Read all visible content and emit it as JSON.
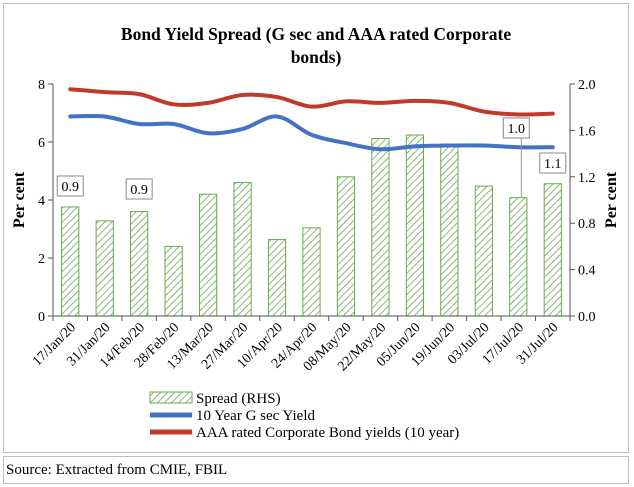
{
  "chart_data": {
    "type": "bar+line",
    "title_lines": [
      "Bond Yield Spread (G sec and  AAA rated Corporate",
      "bonds)"
    ],
    "ylabel_left": "Per cent",
    "ylabel_right": "Per cent",
    "ylim_left": [
      0,
      8
    ],
    "ylim_right": [
      0.0,
      2.0
    ],
    "yticks_left": [
      "0",
      "2",
      "4",
      "6",
      "8"
    ],
    "yticks_right": [
      "0.0",
      "0.4",
      "0.8",
      "1.2",
      "1.6",
      "2.0"
    ],
    "categories": [
      "17/Jan/20",
      "31/Jan/20",
      "14/Feb/20",
      "28/Feb/20",
      "13/Mar/20",
      "27/Mar/20",
      "10/Apr/20",
      "24/Apr/20",
      "08/May/20",
      "22/May/20",
      "05/Jun/20",
      "19/Jun/20",
      "03/Jul/20",
      "17/Jul/20",
      "31/Jul/20"
    ],
    "series": [
      {
        "name": "Spread (RHS)",
        "kind": "bar",
        "axis": "right",
        "color": "#6aa84f",
        "values": [
          0.94,
          0.82,
          0.9,
          0.6,
          1.05,
          1.15,
          0.66,
          0.76,
          1.2,
          1.53,
          1.56,
          1.48,
          1.12,
          1.02,
          1.14
        ]
      },
      {
        "name": "10 Year G sec Yield",
        "kind": "line",
        "axis": "left",
        "color": "#4472c4",
        "values": [
          6.88,
          6.88,
          6.62,
          6.62,
          6.3,
          6.45,
          6.88,
          6.25,
          5.96,
          5.75,
          5.85,
          5.88,
          5.88,
          5.82,
          5.82
        ]
      },
      {
        "name": "AAA rated Corporate Bond yields (10 year)",
        "kind": "line",
        "axis": "left",
        "color": "#c0392b",
        "values": [
          7.82,
          7.72,
          7.65,
          7.3,
          7.35,
          7.62,
          7.55,
          7.22,
          7.4,
          7.35,
          7.42,
          7.35,
          7.05,
          6.95,
          6.98
        ]
      }
    ],
    "annotations": [
      {
        "text": "0.9",
        "category": "17/Jan/20"
      },
      {
        "text": "0.9",
        "category": "14/Feb/20"
      },
      {
        "text": "1.0",
        "category": "17/Jul/20"
      },
      {
        "text": "1.1",
        "category": "31/Jul/20"
      }
    ],
    "legend_position": "bottom",
    "grid": false
  },
  "source_text": "Source: Extracted from CMIE, FBIL"
}
